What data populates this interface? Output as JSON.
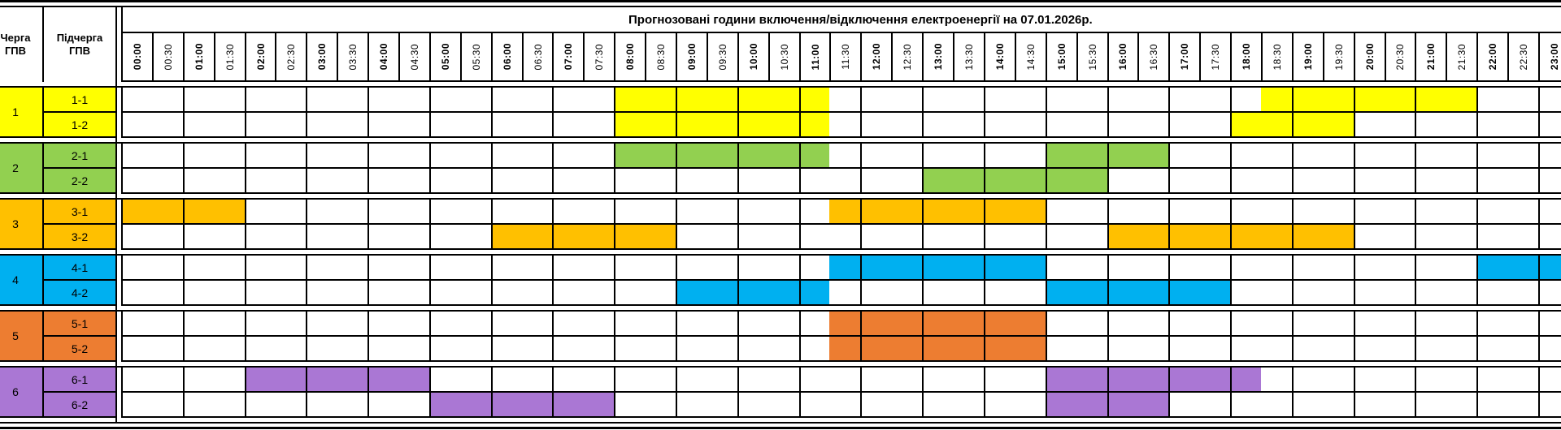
{
  "title": "Прогнозовані години включення/відключення електроенергії на 07.01.2026р.",
  "header": {
    "queue_label": "Черга ГПВ",
    "subqueue_label": "Підчерга ГПВ"
  },
  "time_slots": [
    "00:00",
    "00:30",
    "01:00",
    "01:30",
    "02:00",
    "02:30",
    "03:00",
    "03:30",
    "04:00",
    "04:30",
    "05:00",
    "05:30",
    "06:00",
    "06:30",
    "07:00",
    "07:30",
    "08:00",
    "08:30",
    "09:00",
    "09:30",
    "10:00",
    "10:30",
    "11:00",
    "11:30",
    "12:00",
    "12:30",
    "13:00",
    "13:30",
    "14:00",
    "14:30",
    "15:00",
    "15:30",
    "16:00",
    "16:30",
    "17:00",
    "17:30",
    "18:00",
    "18:30",
    "19:00",
    "19:30",
    "20:00",
    "20:30",
    "21:00",
    "21:30",
    "22:00",
    "22:30",
    "23:00",
    "23:30"
  ],
  "colors": {
    "grid_line": "#000000",
    "background": "#ffffff"
  },
  "queues": [
    {
      "id": "1",
      "color": "#FFFF00",
      "subqueues": [
        {
          "label": "1-1",
          "off_intervals": [
            "08:00-11:30",
            "18:30-22:00"
          ]
        },
        {
          "label": "1-2",
          "off_intervals": [
            "08:00-11:30",
            "18:00-20:00"
          ]
        }
      ]
    },
    {
      "id": "2",
      "color": "#92D050",
      "subqueues": [
        {
          "label": "2-1",
          "off_intervals": [
            "08:00-11:30",
            "15:00-17:00"
          ]
        },
        {
          "label": "2-2",
          "off_intervals": [
            "13:00-16:00"
          ]
        }
      ]
    },
    {
      "id": "3",
      "color": "#FFC000",
      "subqueues": [
        {
          "label": "3-1",
          "off_intervals": [
            "00:00-02:00",
            "11:30-15:00"
          ]
        },
        {
          "label": "3-2",
          "off_intervals": [
            "06:00-09:00",
            "16:00-20:00"
          ]
        }
      ]
    },
    {
      "id": "4",
      "color": "#00B0F0",
      "subqueues": [
        {
          "label": "4-1",
          "off_intervals": [
            "11:30-15:00",
            "22:00-24:00"
          ]
        },
        {
          "label": "4-2",
          "off_intervals": [
            "09:00-11:30",
            "15:00-18:00"
          ]
        }
      ]
    },
    {
      "id": "5",
      "color": "#ED7D31",
      "subqueues": [
        {
          "label": "5-1",
          "off_intervals": [
            "11:30-15:00"
          ]
        },
        {
          "label": "5-2",
          "off_intervals": [
            "11:30-15:00"
          ]
        }
      ]
    },
    {
      "id": "6",
      "color": "#AA77D4",
      "subqueues": [
        {
          "label": "6-1",
          "off_intervals": [
            "02:00-05:00",
            "15:00-18:30"
          ]
        },
        {
          "label": "6-2",
          "off_intervals": [
            "05:00-08:00",
            "15:00-17:00"
          ]
        }
      ]
    }
  ]
}
